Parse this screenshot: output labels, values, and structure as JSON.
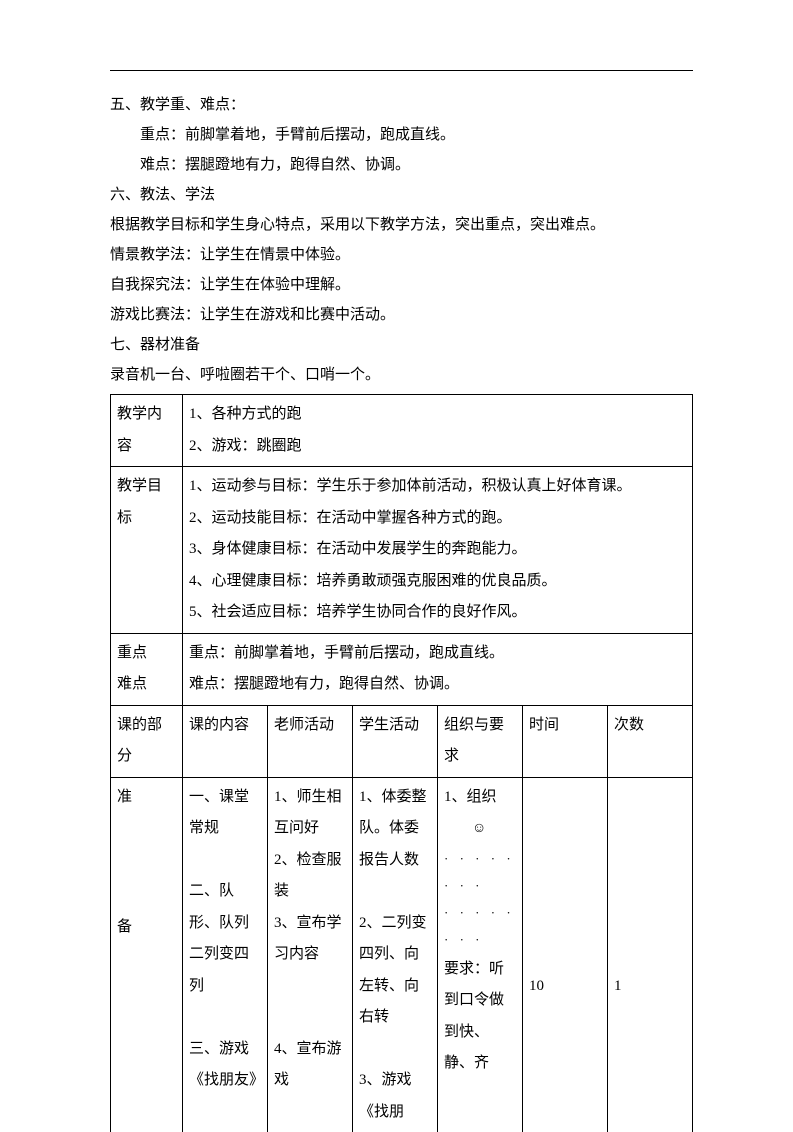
{
  "sections": {
    "five_title": "五、教学重、难点：",
    "five_key": "重点：前脚掌着地，手臂前后摆动，跑成直线。",
    "five_diff": "难点：摆腿蹬地有力，跑得自然、协调。",
    "six_title": "六、教法、学法",
    "six_intro": "根据教学目标和学生身心特点，采用以下教学方法，突出重点，突出难点。",
    "six_m1": "情景教学法：让学生在情景中体验。",
    "six_m2": "自我探究法：让学生在体验中理解。",
    "six_m3": "游戏比赛法：让学生在游戏和比赛中活动。",
    "seven_title": "七、器材准备",
    "seven_items": "录音机一台、呼啦圈若干个、口哨一个。"
  },
  "table": {
    "row1_label": "教学内容",
    "row1_l1": "1、各种方式的跑",
    "row1_l2": "2、游戏：跳圈跑",
    "row2_label": "教学目标",
    "row2_l1": "1、运动参与目标：学生乐于参加体前活动，积极认真上好体育课。",
    "row2_l2": "2、运动技能目标：在活动中掌握各种方式的跑。",
    "row2_l3": "3、身体健康目标：在活动中发展学生的奔跑能力。",
    "row2_l4": "4、心理健康目标：培养勇敢顽强克服困难的优良品质。",
    "row2_l5": "5、社会适应目标：培养学生协同合作的良好作风。",
    "row3_label_a": "重点",
    "row3_label_b": "难点",
    "row3_l1": "重点：前脚掌着地，手臂前后摆动，跑成直线。",
    "row3_l2": "难点：摆腿蹬地有力，跑得自然、协调。",
    "hdr_part": "课的部分",
    "hdr_content": "课的内容",
    "hdr_teacher": "老师活动",
    "hdr_student": "学生活动",
    "hdr_org": "组织与要求",
    "hdr_time": "时间",
    "hdr_count": "次数",
    "prep_a": "准",
    "prep_b": "备",
    "content_1": "一、课堂常规",
    "content_2": "二、队形、队列",
    "content_3": "二列变四列",
    "content_4": "三、游戏《找朋友》",
    "teacher_1": "1、师生相互问好",
    "teacher_2": "2、检查服装",
    "teacher_3": "3、宣布学习内容",
    "teacher_4": "4、宣布游戏",
    "student_1": "1、体委整队。体委报告人数",
    "student_2": "2、二列变四列、向左转、向右转",
    "student_3": "3、游戏《找朋",
    "org_1": "1、组织",
    "org_smiley": "☺",
    "org_dots1": "· · · · · · · ·",
    "org_dots2": "· · · · · · · ·",
    "org_req": "要求：听到口令做到快、静、齐",
    "time_val": "10",
    "count_val": "1"
  },
  "colors": {
    "text": "#000000",
    "background": "#ffffff",
    "border": "#000000"
  },
  "typography": {
    "body_fontsize": 15,
    "line_height": 2.0,
    "font_family": "SimSun"
  }
}
